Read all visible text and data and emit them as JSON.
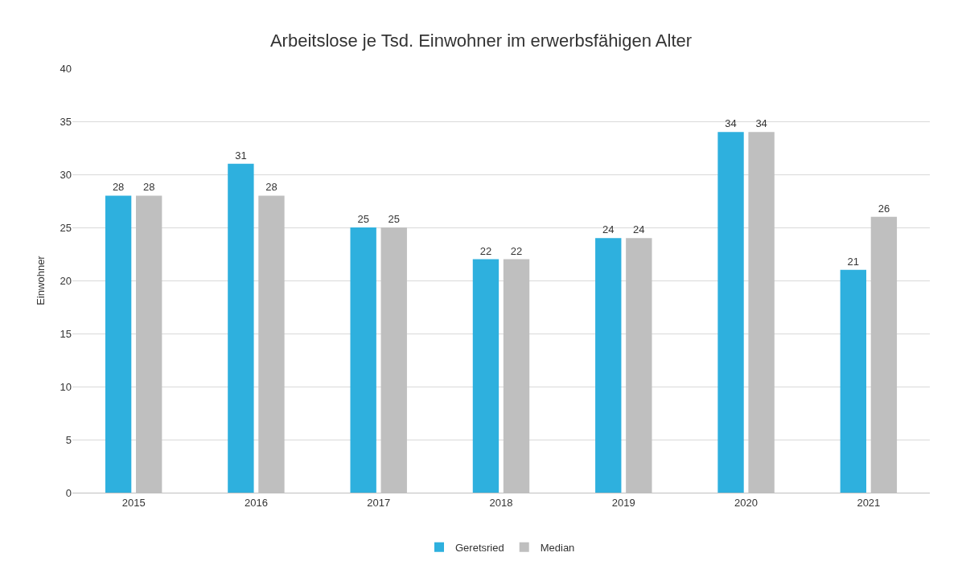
{
  "chart_data": {
    "type": "bar",
    "title": "Arbeitslose je Tsd. Einwohner im erwerbsfähigen Alter",
    "ylabel": "Einwohner",
    "categories": [
      "2015",
      "2016",
      "2017",
      "2018",
      "2019",
      "2020",
      "2021"
    ],
    "series": [
      {
        "name": "Geretsried",
        "color": "#2eb0de",
        "values": [
          28,
          31,
          25,
          22,
          24,
          34,
          21
        ]
      },
      {
        "name": "Median",
        "color": "#bfbfbf",
        "values": [
          28,
          28,
          25,
          22,
          24,
          34,
          26
        ]
      }
    ],
    "ylim": [
      0,
      40
    ],
    "yticks": [
      0,
      5,
      10,
      15,
      20,
      25,
      30,
      35,
      40
    ],
    "grid": "y",
    "legend": "bottom",
    "data_labels": true
  }
}
